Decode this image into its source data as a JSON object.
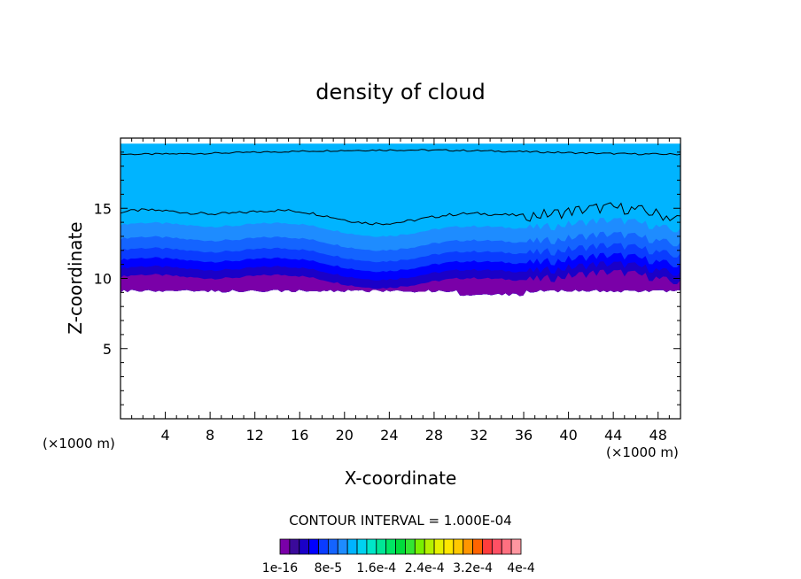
{
  "chart_data": {
    "type": "heatmap",
    "title": "density of cloud",
    "xlabel": "X-coordinate",
    "ylabel": "Z-coordinate",
    "x_unit_label": "(×1000 m)",
    "z_unit_label": "(×1000 m)",
    "xlim": [
      0,
      50
    ],
    "ylim": [
      0,
      20
    ],
    "x_ticks": [
      4,
      8,
      12,
      16,
      20,
      24,
      28,
      32,
      36,
      40,
      44,
      48
    ],
    "y_ticks": [
      5,
      10,
      15
    ],
    "contour_interval_text": "CONTOUR INTERVAL = 1.000E-04",
    "colorbar": {
      "colors": [
        "#7a00a8",
        "#3a0a9a",
        "#1a00c8",
        "#0000ff",
        "#0a3cff",
        "#1464ff",
        "#1e8cff",
        "#00b4ff",
        "#00d2f0",
        "#00e6c8",
        "#00e696",
        "#00e664",
        "#00dc3c",
        "#32e632",
        "#78f000",
        "#b4f000",
        "#e6f000",
        "#ffe600",
        "#ffc800",
        "#ff9600",
        "#ff6400",
        "#ff3c3c",
        "#ff5064",
        "#ff7080",
        "#ff96a0"
      ],
      "labels": [
        "1e-16",
        "8e-5",
        "1.6e-4",
        "2.4e-4",
        "3.2e-4",
        "4e-4"
      ]
    },
    "cloud_base_z": 9.1,
    "cloud_top_z": 19.6,
    "contour_lines_z": [
      14.5,
      19.0
    ],
    "layer_colors": [
      "#7a00a8",
      "#1a00c8",
      "#0000ff",
      "#0a3cff",
      "#1464ff",
      "#1e8cff",
      "#00b4ff"
    ]
  }
}
